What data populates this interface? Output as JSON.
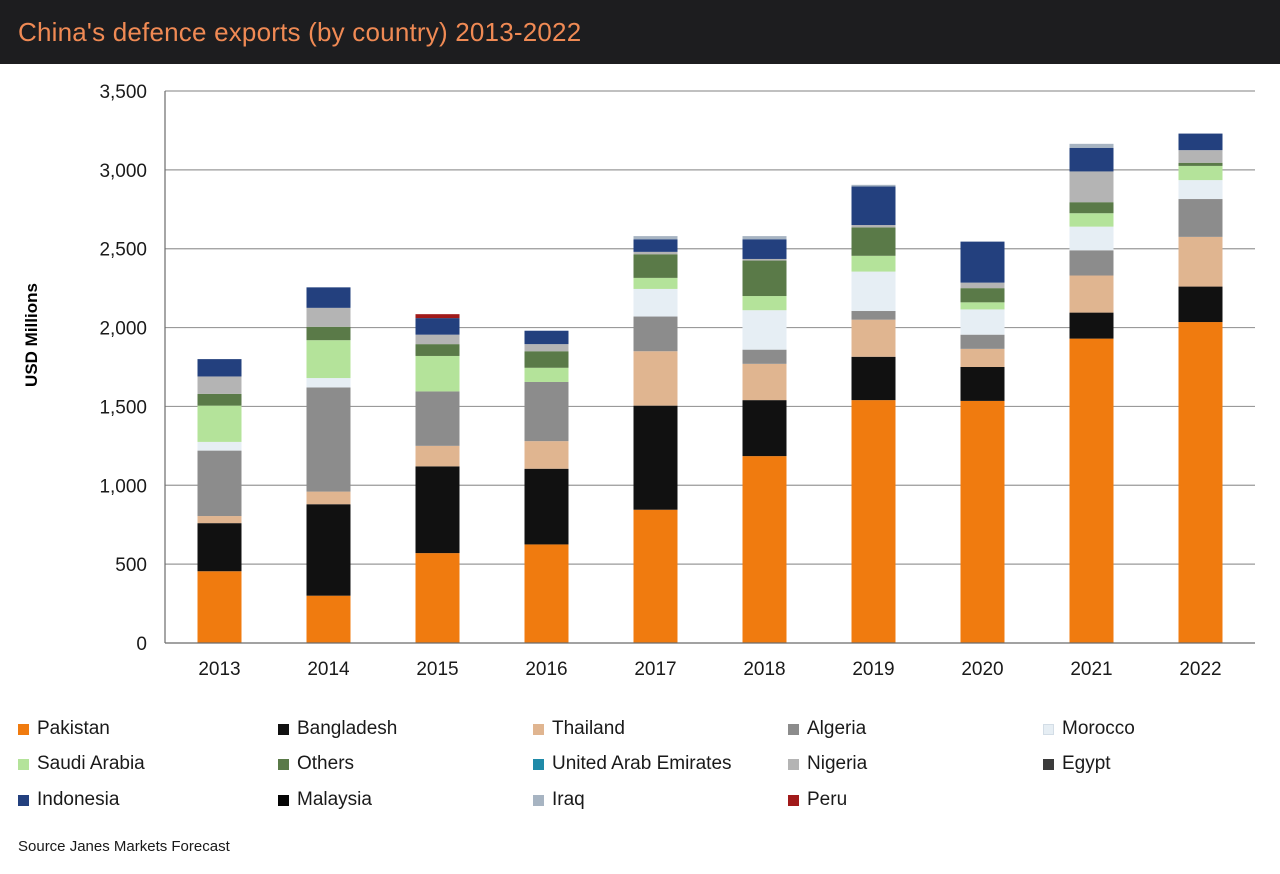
{
  "title": "China's defence exports (by country) 2013-2022",
  "source": "Source  Janes Markets Forecast",
  "chart_data": {
    "type": "bar",
    "stacked": true,
    "title": "China's defence exports (by country) 2013-2022",
    "xlabel": "",
    "ylabel": "USD Millions",
    "ylim": [
      0,
      3500
    ],
    "yticks": [
      0,
      500,
      1000,
      1500,
      2000,
      2500,
      3000,
      3500
    ],
    "ytick_labels": [
      "0",
      "500",
      "1,000",
      "1,500",
      "2,000",
      "2,500",
      "3,000",
      "3,500"
    ],
    "grid": true,
    "legend_position": "bottom",
    "categories": [
      "2013",
      "2014",
      "2015",
      "2016",
      "2017",
      "2018",
      "2019",
      "2020",
      "2021",
      "2022"
    ],
    "series": [
      {
        "name": "Pakistan",
        "color": "#f07b0f",
        "values": [
          455,
          300,
          570,
          625,
          845,
          1185,
          1540,
          1535,
          1930,
          2035
        ]
      },
      {
        "name": "Bangladesh",
        "color": "#111111",
        "values": [
          305,
          580,
          550,
          480,
          660,
          355,
          275,
          215,
          165,
          225
        ]
      },
      {
        "name": "Thailand",
        "color": "#e0b590",
        "values": [
          45,
          80,
          130,
          175,
          345,
          230,
          235,
          115,
          235,
          315
        ]
      },
      {
        "name": "Algeria",
        "color": "#8c8c8c",
        "values": [
          415,
          660,
          345,
          375,
          220,
          90,
          55,
          90,
          160,
          240
        ]
      },
      {
        "name": "Morocco",
        "color": "#e6eef4",
        "values": [
          55,
          60,
          0,
          0,
          175,
          250,
          250,
          160,
          150,
          120
        ]
      },
      {
        "name": "Saudi Arabia",
        "color": "#b4e39a",
        "values": [
          230,
          240,
          225,
          90,
          70,
          90,
          100,
          45,
          85,
          90
        ]
      },
      {
        "name": "Others",
        "color": "#5a7a48",
        "values": [
          75,
          85,
          75,
          105,
          150,
          225,
          180,
          90,
          70,
          20
        ]
      },
      {
        "name": "United Arab Emirates",
        "color": "#1f8aa8",
        "values": [
          0,
          0,
          0,
          0,
          0,
          0,
          0,
          0,
          0,
          0
        ]
      },
      {
        "name": "Nigeria",
        "color": "#b4b4b4",
        "values": [
          110,
          120,
          60,
          45,
          15,
          10,
          15,
          35,
          195,
          80
        ]
      },
      {
        "name": "Egypt",
        "color": "#3b3b3b",
        "values": [
          0,
          0,
          0,
          0,
          0,
          0,
          0,
          0,
          0,
          0
        ]
      },
      {
        "name": "Indonesia",
        "color": "#23407e",
        "values": [
          110,
          130,
          105,
          85,
          80,
          125,
          245,
          260,
          150,
          105
        ]
      },
      {
        "name": "Malaysia",
        "color": "#050505",
        "values": [
          0,
          0,
          0,
          0,
          0,
          0,
          0,
          0,
          0,
          0
        ]
      },
      {
        "name": "Iraq",
        "color": "#a7b4c2",
        "values": [
          0,
          0,
          0,
          0,
          20,
          20,
          10,
          0,
          25,
          0
        ]
      },
      {
        "name": "Peru",
        "color": "#a11a1a",
        "values": [
          0,
          0,
          25,
          0,
          0,
          0,
          0,
          0,
          0,
          0
        ]
      }
    ]
  }
}
